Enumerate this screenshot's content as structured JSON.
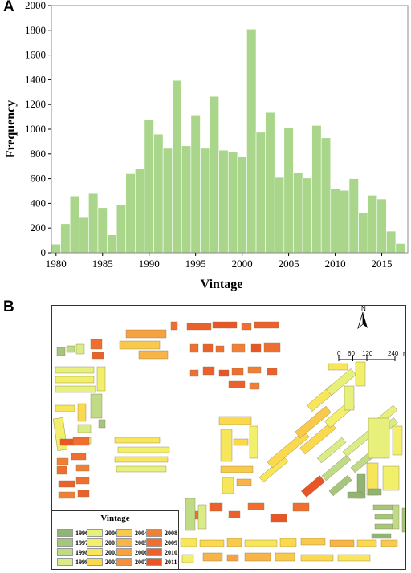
{
  "panel_a_label": "A",
  "panel_b_label": "B",
  "chart_data": {
    "type": "bar",
    "xlabel": "Vintage",
    "ylabel": "Frequency",
    "ylim": [
      0,
      2000
    ],
    "xlim": [
      1979.5,
      2017.8
    ],
    "yticks": [
      0,
      200,
      400,
      600,
      800,
      1000,
      1200,
      1400,
      1600,
      1800,
      2000
    ],
    "xticks": [
      1980,
      1985,
      1990,
      1995,
      2000,
      2005,
      2010,
      2015
    ],
    "bar_color": "#a9d68a",
    "grid": false,
    "categories": [
      1980,
      1981,
      1982,
      1983,
      1984,
      1985,
      1986,
      1987,
      1988,
      1989,
      1990,
      1991,
      1992,
      1993,
      1994,
      1995,
      1996,
      1997,
      1998,
      1999,
      2000,
      2001,
      2002,
      2003,
      2004,
      2005,
      2006,
      2007,
      2008,
      2009,
      2010,
      2011,
      2012,
      2013,
      2014,
      2015,
      2016,
      2017
    ],
    "values": [
      70,
      235,
      460,
      285,
      480,
      365,
      145,
      385,
      640,
      680,
      1075,
      960,
      845,
      1395,
      865,
      1115,
      845,
      1265,
      830,
      815,
      775,
      1810,
      975,
      1135,
      610,
      1015,
      650,
      605,
      1030,
      930,
      520,
      505,
      600,
      320,
      465,
      435,
      175,
      75
    ]
  },
  "map": {
    "legend_title": "Vintage",
    "legend": [
      {
        "year": "1996",
        "color": "#8fb573"
      },
      {
        "year": "1997",
        "color": "#a4c77c"
      },
      {
        "year": "1998",
        "color": "#bfdb86"
      },
      {
        "year": "1999",
        "color": "#d9ec85"
      },
      {
        "year": "2000",
        "color": "#e6f07a"
      },
      {
        "year": "2001",
        "color": "#f2f06a"
      },
      {
        "year": "2002",
        "color": "#f8e65a"
      },
      {
        "year": "2003",
        "color": "#fbd94f"
      },
      {
        "year": "2004",
        "color": "#f9c94b"
      },
      {
        "year": "2005",
        "color": "#f8b446"
      },
      {
        "year": "2006",
        "color": "#f6a241"
      },
      {
        "year": "2007",
        "color": "#f4903b"
      },
      {
        "year": "2008",
        "color": "#f27f36"
      },
      {
        "year": "2009",
        "color": "#ef6e30"
      },
      {
        "year": "2010",
        "color": "#ec612b"
      },
      {
        "year": "2011",
        "color": "#e95526"
      }
    ],
    "north_label": "N",
    "scale_labels": [
      "0",
      "60",
      "120",
      "240",
      "m"
    ]
  }
}
